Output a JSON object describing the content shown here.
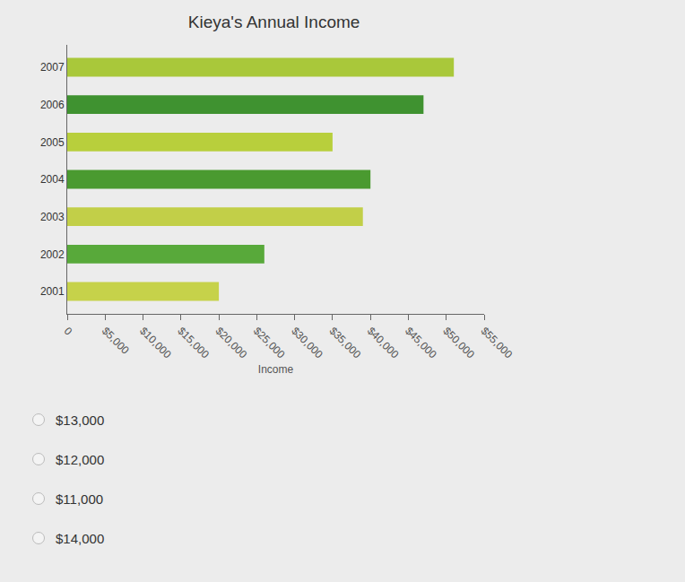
{
  "chart_data": {
    "type": "bar",
    "orientation": "horizontal",
    "title": "Kieya's Annual Income",
    "x_label": "Income",
    "categories": [
      "2001",
      "2002",
      "2003",
      "2004",
      "2005",
      "2006",
      "2007"
    ],
    "values": [
      20000,
      26000,
      39000,
      40000,
      35000,
      47000,
      51000
    ],
    "colors": [
      "#c6d24a",
      "#58a93a",
      "#c2cf48",
      "#4a9a30",
      "#b8cf3c",
      "#3f9230",
      "#a9c83a"
    ],
    "xlim": [
      0,
      55000
    ],
    "xticks": [
      0,
      {
        "value": 5000,
        "label": "$5,000"
      },
      {
        "value": 10000,
        "label": "$10,000"
      },
      {
        "value": 15000,
        "label": "$15,000"
      },
      {
        "value": 20000,
        "label": "$20,000"
      },
      {
        "value": 25000,
        "label": "$25,000"
      },
      {
        "value": 30000,
        "label": "$30,000"
      },
      {
        "value": 35000,
        "label": "$35,000"
      },
      {
        "value": 40000,
        "label": "$40,000"
      },
      {
        "value": 45000,
        "label": "$45,000"
      },
      {
        "value": 50000,
        "label": "$50,000"
      },
      {
        "value": 55000,
        "label": "$55,000"
      }
    ],
    "grid": false
  },
  "options": [
    "$13,000",
    "$12,000",
    "$11,000",
    "$14,000"
  ]
}
